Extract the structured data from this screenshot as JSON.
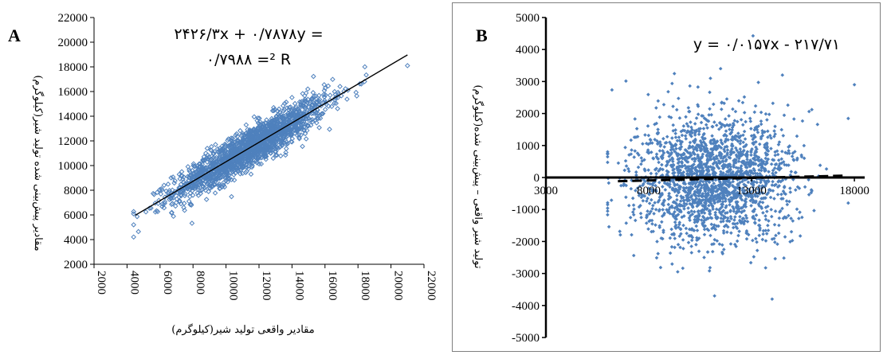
{
  "chart_data": [
    {
      "panel": "A",
      "type": "scatter",
      "title": "",
      "xlabel": "مقادیر واقعی تولید شیر(کیلوگرم)",
      "ylabel": "مقادیر پیش‌بینی شده تولید شیر(کیلوگرم)",
      "xlim": [
        2000,
        22000
      ],
      "ylim": [
        2000,
        22000
      ],
      "x_ticks": [
        2000,
        4000,
        6000,
        8000,
        10000,
        12000,
        14000,
        16000,
        18000,
        20000,
        22000
      ],
      "y_ticks": [
        2000,
        4000,
        6000,
        8000,
        10000,
        12000,
        14000,
        16000,
        18000,
        20000,
        22000
      ],
      "marker": "open-diamond",
      "color": "#4f81bd",
      "trendline": {
        "slope": 0.7878,
        "intercept": 2426.3,
        "x_range": [
          4500,
          21000
        ],
        "color": "#000000"
      },
      "annotation_lines": [
        "۲۴۲۶/۳x + ۰/۷۸۷۸y =",
        "۰/۷۹۸۸ =² R"
      ],
      "point_cloud": {
        "n": 1800,
        "x_mean": 11500,
        "x_sd": 2300,
        "x_range": [
          4400,
          21000
        ],
        "residual_sd": 800,
        "outliers": [
          [
            21000,
            18100
          ],
          [
            4400,
            5200
          ]
        ]
      },
      "grid": false,
      "legend": "none"
    },
    {
      "panel": "B",
      "type": "scatter",
      "title": "",
      "xlabel": "",
      "ylabel": "تولید شیر واقعی – پیش‌بینی شده(کیلوگرم)",
      "xlim": [
        3000,
        18500
      ],
      "ylim": [
        -5000,
        5000
      ],
      "x_ticks": [
        3000,
        8000,
        13000,
        18000
      ],
      "y_ticks": [
        -5000,
        -4000,
        -3000,
        -2000,
        -1000,
        0,
        1000,
        2000,
        3000,
        4000,
        5000
      ],
      "marker": "filled-diamond",
      "color": "#4f81bd",
      "trendline": {
        "slope": 0.0157,
        "intercept": -217.71,
        "x_range": [
          6500,
          17500
        ],
        "style": "dashed",
        "color": "#000000"
      },
      "annotation_lines": [
        "y = ۰/۰۱۵۷x - ۲۱۷/۷۱"
      ],
      "point_cloud": {
        "n": 2000,
        "x_mean": 11200,
        "x_sd": 2000,
        "x_range": [
          6000,
          18000
        ],
        "y_sd": 1000,
        "outliers": [
          [
            18000,
            2900
          ],
          [
            11000,
            3100
          ],
          [
            14500,
            3200
          ],
          [
            11200,
            -3700
          ],
          [
            14000,
            -3800
          ]
        ]
      },
      "zero_line": true,
      "grid": false,
      "legend": "none"
    }
  ]
}
